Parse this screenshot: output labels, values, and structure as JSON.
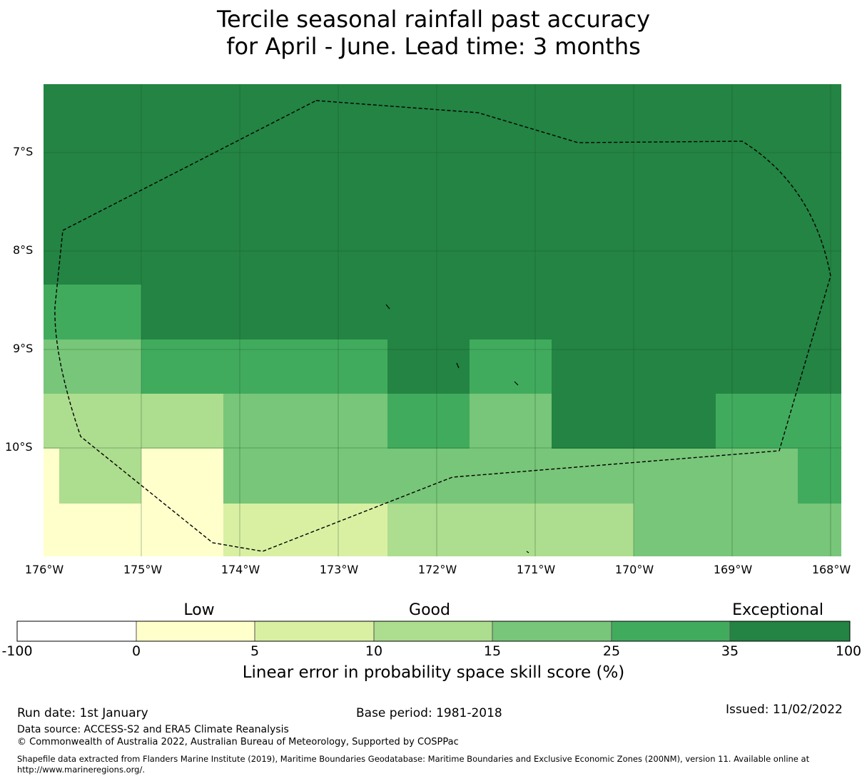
{
  "title": {
    "line1": "Tercile seasonal rainfall past accuracy",
    "line2": "for April - June. Lead time: 3 months"
  },
  "map": {
    "lat_labels": [
      "7°S",
      "8°S",
      "9°S",
      "10°S"
    ],
    "lon_labels": [
      "176°W",
      "175°W",
      "174°W",
      "173°W",
      "172°W",
      "171°W",
      "170°W",
      "169°W",
      "168°W"
    ]
  },
  "colorbar": {
    "categories": [
      "Low",
      "Good",
      "Exceptional"
    ],
    "ticks": [
      "-100",
      "0",
      "5",
      "10",
      "15",
      "25",
      "35",
      "100"
    ],
    "colors": [
      "#ffffff",
      "#ffffcc",
      "#d9f0a3",
      "#addd8e",
      "#78c679",
      "#41ab5d",
      "#238443"
    ],
    "label": "Linear error in probability space skill score (%)"
  },
  "footer": {
    "run_date": "Run date: 1st January",
    "base_period": "Base period: 1981-2018",
    "issued": "Issued: 11/02/2022",
    "data_source": "Data source: ACCESS-S2 and ERA5 Climate Reanalysis",
    "copyright": "© Commonwealth of Australia 2022, Australian Bureau of Meteorology, Supported by COSPPac",
    "shapefile_line1": "Shapefile data extracted from Flanders Marine Institute (2019), Maritime Boundaries Geodatabase: Maritime Boundaries and Exclusive Economic Zones (200NM), version 11. Available online at",
    "shapefile_line2": "http://www.marineregions.org/."
  }
}
